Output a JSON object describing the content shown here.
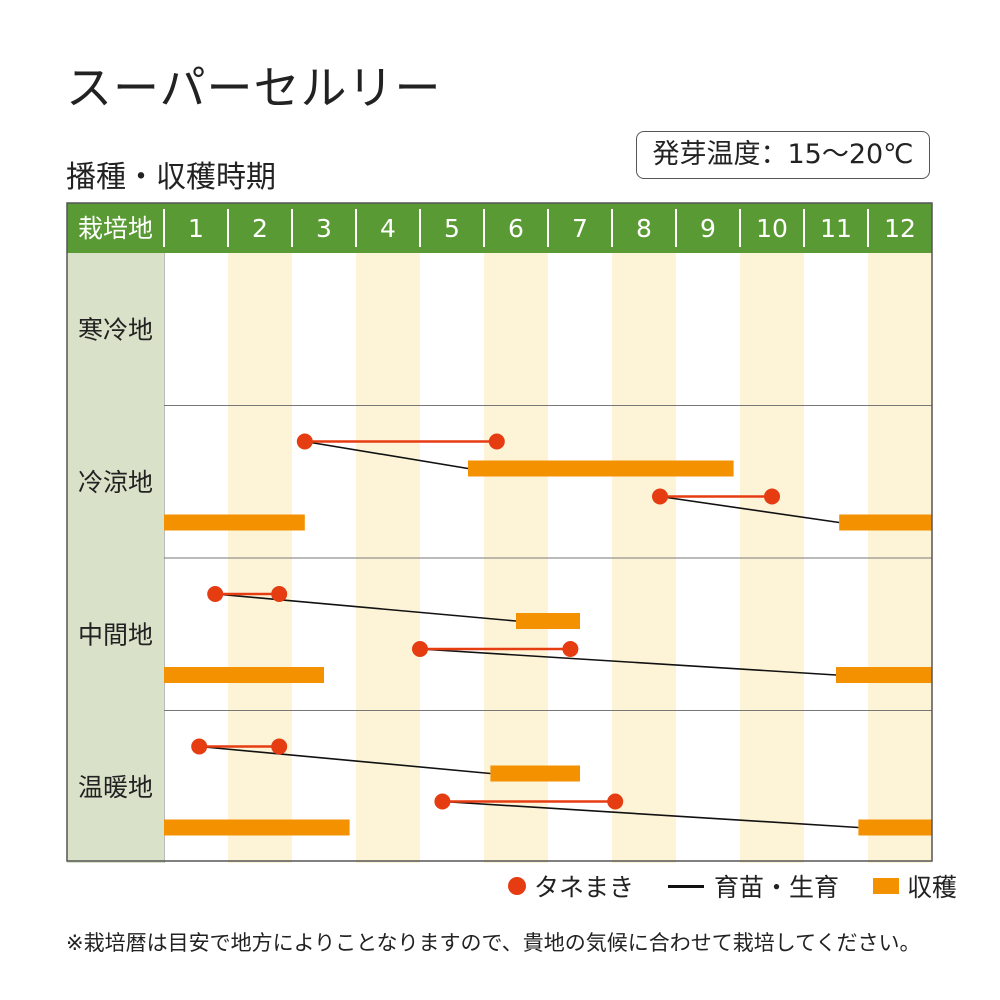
{
  "title": "スーパーセルリー",
  "subtitle": "播種・収穫時期",
  "temperature": "発芽温度：15〜20℃",
  "note": "※栽培暦は目安で地方によりことなりますので、貴地の気候に合わせて栽培してください。",
  "legend": {
    "sowing": "タネまき",
    "growing": "育苗・生育",
    "harvest": "収穫"
  },
  "colors": {
    "header_green": "#5a9a35",
    "region_bg": "#d9e2c9",
    "alt_column": "#fdf4d8",
    "sowing": "#e63c12",
    "harvest": "#f39100",
    "growing": "#111111"
  },
  "chart_data": {
    "type": "gantt",
    "header_label": "栽培地",
    "months": [
      "1",
      "2",
      "3",
      "4",
      "5",
      "6",
      "7",
      "8",
      "9",
      "10",
      "11",
      "12"
    ],
    "regions": [
      {
        "name": "寒冷地",
        "schedules": []
      },
      {
        "name": "冷涼地",
        "schedules": [
          {
            "sow": [
              3.2,
              6.2
            ],
            "harvest": [
              [
                5.75,
                9.9
              ]
            ]
          },
          {
            "sow": [
              8.75,
              10.5
            ],
            "harvest": [
              [
                11.55,
                13.0
              ],
              [
                1.0,
                3.2
              ]
            ]
          }
        ]
      },
      {
        "name": "中間地",
        "schedules": [
          {
            "sow": [
              1.8,
              2.8
            ],
            "harvest": [
              [
                6.5,
                7.5
              ]
            ]
          },
          {
            "sow": [
              5.0,
              7.35
            ],
            "harvest": [
              [
                11.5,
                13.0
              ],
              [
                1.0,
                3.5
              ]
            ]
          }
        ]
      },
      {
        "name": "温暖地",
        "schedules": [
          {
            "sow": [
              1.55,
              2.8
            ],
            "harvest": [
              [
                6.1,
                7.5
              ]
            ]
          },
          {
            "sow": [
              5.35,
              8.05
            ],
            "harvest": [
              [
                11.85,
                13.0
              ],
              [
                1.0,
                3.9
              ]
            ]
          }
        ]
      }
    ]
  }
}
